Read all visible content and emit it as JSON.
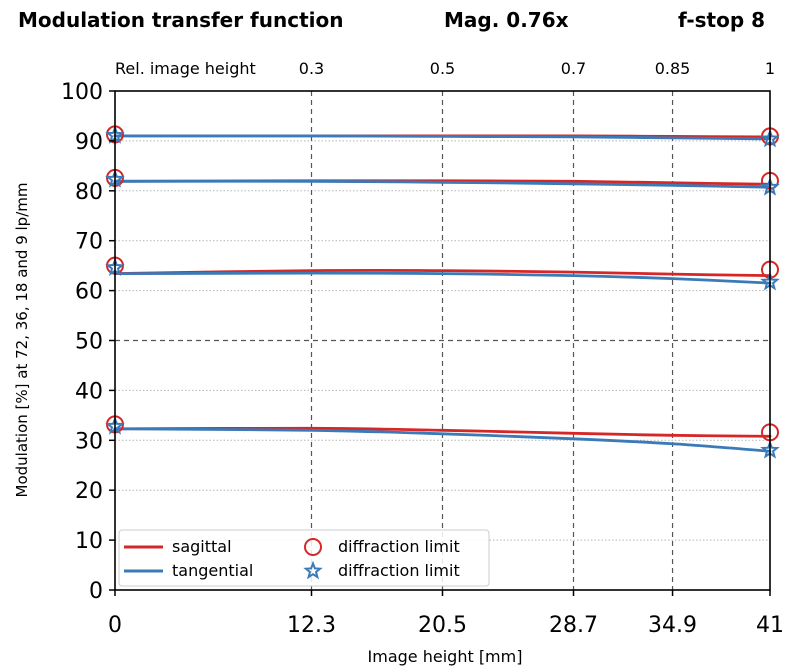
{
  "header": {
    "title": "Modulation transfer function",
    "magnification": "Mag. 0.76x",
    "fstop": "f-stop 8"
  },
  "chart_data": {
    "type": "line",
    "title": "Modulation transfer function",
    "xlabel": "Image height [mm]",
    "ylabel": "Modulation [%] at 72, 36, 18 and 9 lp/mm",
    "secondary_x_label": "Rel. image height",
    "xlim": [
      0,
      41
    ],
    "ylim": [
      0,
      100
    ],
    "x_ticks": [
      0,
      12.3,
      20.5,
      28.7,
      34.9,
      41
    ],
    "x_tick_labels": [
      "0",
      "12.3",
      "20.5",
      "28.7",
      "34.9",
      "41"
    ],
    "secondary_x_ticks": [
      12.3,
      20.5,
      28.7,
      34.9,
      41
    ],
    "secondary_x_tick_labels": [
      "0.3",
      "0.5",
      "0.7",
      "0.85",
      "1"
    ],
    "y_ticks": [
      0,
      10,
      20,
      30,
      40,
      50,
      60,
      70,
      80,
      90,
      100
    ],
    "y_tick_labels": [
      "0",
      "10",
      "20",
      "30",
      "40",
      "50",
      "60",
      "70",
      "80",
      "90",
      "100"
    ],
    "grid": {
      "dashed_x": [
        12.3,
        20.5,
        28.7,
        34.9
      ],
      "dashed_y": [
        50
      ],
      "dotted_y": [
        10,
        20,
        30,
        40,
        60,
        70,
        80,
        90
      ]
    },
    "colors": {
      "sagittal": "#d62728",
      "tangential": "#3a7ab8"
    },
    "x": [
      0,
      12.3,
      20.5,
      28.7,
      34.9,
      41
    ],
    "series": [
      {
        "name": "sagittal",
        "group": "72 lp/mm",
        "values": [
          32.3,
          32.4,
          32.0,
          31.4,
          31.0,
          30.8
        ]
      },
      {
        "name": "tangential",
        "group": "72 lp/mm",
        "values": [
          32.3,
          32.0,
          31.3,
          30.3,
          29.3,
          27.8
        ]
      },
      {
        "name": "sagittal",
        "group": "36 lp/mm",
        "values": [
          63.4,
          64.0,
          64.0,
          63.7,
          63.3,
          63.0
        ]
      },
      {
        "name": "tangential",
        "group": "36 lp/mm",
        "values": [
          63.4,
          63.5,
          63.4,
          63.0,
          62.4,
          61.5
        ]
      },
      {
        "name": "sagittal",
        "group": "18 lp/mm",
        "values": [
          81.9,
          82.0,
          82.0,
          81.9,
          81.6,
          81.3
        ]
      },
      {
        "name": "tangential",
        "group": "18 lp/mm",
        "values": [
          81.9,
          81.9,
          81.7,
          81.4,
          81.1,
          80.7
        ]
      },
      {
        "name": "sagittal",
        "group": "9 lp/mm",
        "values": [
          91.0,
          91.0,
          91.0,
          91.0,
          90.9,
          90.8
        ]
      },
      {
        "name": "tangential",
        "group": "9 lp/mm",
        "values": [
          91.0,
          91.0,
          90.9,
          90.8,
          90.6,
          90.4
        ]
      }
    ],
    "diffraction_limit": {
      "x": [
        0,
        41
      ],
      "sagittal": [
        [
          33.2,
          31.6
        ],
        [
          65.0,
          64.2
        ],
        [
          82.6,
          82.0
        ],
        [
          91.3,
          90.9
        ]
      ],
      "tangential": [
        [
          32.8,
          28.0
        ],
        [
          64.6,
          61.7
        ],
        [
          82.3,
          80.7
        ],
        [
          91.1,
          90.4
        ]
      ]
    },
    "legend": {
      "position": "bottom-left",
      "entries": [
        {
          "label": "sagittal",
          "marker": "line",
          "color": "#d62728"
        },
        {
          "label": "diffraction limit",
          "marker": "circle",
          "color": "#d62728"
        },
        {
          "label": "tangential",
          "marker": "line",
          "color": "#3a7ab8"
        },
        {
          "label": "diffraction limit",
          "marker": "star",
          "color": "#3a7ab8"
        }
      ]
    }
  }
}
